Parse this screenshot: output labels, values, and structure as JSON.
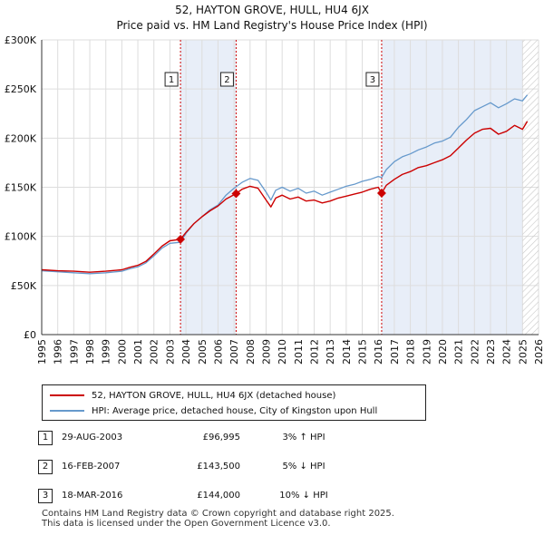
{
  "title_line1": "52, HAYTON GROVE, HULL, HU4 6JX",
  "title_line2": "Price paid vs. HM Land Registry's House Price Index (HPI)",
  "legend": [
    {
      "label": "52, HAYTON GROVE, HULL, HU4 6JX (detached house)",
      "color": "#cc0000"
    },
    {
      "label": "HPI: Average price, detached house, City of Kingston upon Hull",
      "color": "#6699cc"
    }
  ],
  "sales": [
    {
      "num": "1",
      "date": "29-AUG-2003",
      "price": "£96,995",
      "hpi": "3% ↑ HPI"
    },
    {
      "num": "2",
      "date": "16-FEB-2007",
      "price": "£143,500",
      "hpi": "5% ↓ HPI"
    },
    {
      "num": "3",
      "date": "18-MAR-2016",
      "price": "£144,000",
      "hpi": "10% ↓ HPI"
    }
  ],
  "footer_line1": "Contains HM Land Registry data © Crown copyright and database right 2025.",
  "footer_line2": "This data is licensed under the Open Government Licence v3.0.",
  "colors": {
    "property": "#cc0000",
    "hpi": "#6699cc",
    "shade": "#e8eef8",
    "grid": "#dddddd"
  },
  "chart_data": {
    "type": "line",
    "title": "52, HAYTON GROVE, HULL, HU4 6JX",
    "subtitle": "Price paid vs. HM Land Registry's House Price Index (HPI)",
    "xlabel": "",
    "ylabel": "",
    "xlim": [
      1995,
      2026
    ],
    "ylim": [
      0,
      300000
    ],
    "y_ticks": [
      0,
      50000,
      100000,
      150000,
      200000,
      250000,
      300000
    ],
    "y_tick_labels": [
      "£0",
      "£50K",
      "£100K",
      "£150K",
      "£200K",
      "£250K",
      "£300K"
    ],
    "x_ticks": [
      1995,
      1996,
      1997,
      1998,
      1999,
      2000,
      2001,
      2002,
      2003,
      2004,
      2005,
      2006,
      2007,
      2008,
      2009,
      2010,
      2011,
      2012,
      2013,
      2014,
      2015,
      2016,
      2017,
      2018,
      2019,
      2020,
      2021,
      2022,
      2023,
      2024,
      2025,
      2026
    ],
    "x_tick_labels": [
      "1995",
      "1996",
      "1997",
      "1998",
      "1999",
      "2000",
      "2001",
      "2002",
      "2003",
      "2004",
      "2005",
      "2006",
      "2007",
      "2008",
      "2009",
      "2010",
      "2011",
      "2012",
      "2013",
      "2014",
      "2015",
      "2016",
      "2017",
      "2018",
      "2019",
      "2020",
      "2021",
      "2022",
      "2023",
      "2024",
      "2025",
      "2026"
    ],
    "grid": true,
    "legend_position": "below",
    "series": [
      {
        "name": "HPI: Average price, detached house, City of Kingston upon Hull",
        "color": "#6699cc",
        "x": [
          1995.0,
          1996.0,
          1997.0,
          1998.0,
          1999.0,
          2000.0,
          2000.5,
          2001.0,
          2001.5,
          2002.0,
          2002.5,
          2003.0,
          2003.66,
          2004.0,
          2004.5,
          2005.0,
          2005.5,
          2006.0,
          2006.5,
          2007.0,
          2007.5,
          2008.0,
          2008.5,
          2009.0,
          2009.3,
          2009.6,
          2010.0,
          2010.5,
          2011.0,
          2011.5,
          2012.0,
          2012.5,
          2013.0,
          2013.5,
          2014.0,
          2014.5,
          2015.0,
          2015.5,
          2016.0,
          2016.21,
          2016.5,
          2017.0,
          2017.5,
          2018.0,
          2018.5,
          2019.0,
          2019.5,
          2020.0,
          2020.5,
          2021.0,
          2021.5,
          2022.0,
          2022.5,
          2023.0,
          2023.5,
          2024.0,
          2024.5,
          2025.0,
          2025.3
        ],
        "y": [
          65000,
          64000,
          63000,
          62000,
          63000,
          64500,
          67000,
          69000,
          73000,
          80000,
          88000,
          93000,
          94000,
          103000,
          113000,
          120000,
          127000,
          132000,
          142000,
          149000,
          155000,
          159000,
          157000,
          145000,
          137000,
          147000,
          150000,
          146000,
          149000,
          144000,
          146000,
          142000,
          145000,
          148000,
          151000,
          153000,
          156000,
          158000,
          161000,
          160000,
          168000,
          176000,
          181000,
          184000,
          188000,
          191000,
          195000,
          197000,
          201000,
          211000,
          219000,
          228000,
          232000,
          236000,
          231000,
          235000,
          240000,
          238000,
          244000
        ]
      },
      {
        "name": "52, HAYTON GROVE, HULL, HU4 6JX (detached house)",
        "color": "#cc0000",
        "x": [
          1995.0,
          1996.0,
          1997.0,
          1998.0,
          1999.0,
          2000.0,
          2000.5,
          2001.0,
          2001.5,
          2002.0,
          2002.5,
          2003.0,
          2003.66,
          2004.0,
          2004.5,
          2005.0,
          2005.5,
          2006.0,
          2006.5,
          2007.13,
          2007.5,
          2008.0,
          2008.5,
          2009.0,
          2009.3,
          2009.6,
          2010.0,
          2010.5,
          2011.0,
          2011.5,
          2012.0,
          2012.5,
          2013.0,
          2013.5,
          2014.0,
          2014.5,
          2015.0,
          2015.5,
          2016.0,
          2016.21,
          2016.5,
          2017.0,
          2017.5,
          2018.0,
          2018.5,
          2019.0,
          2019.5,
          2020.0,
          2020.5,
          2021.0,
          2021.5,
          2022.0,
          2022.5,
          2023.0,
          2023.5,
          2024.0,
          2024.5,
          2025.0,
          2025.3
        ],
        "y": [
          66000,
          65000,
          64500,
          63500,
          64500,
          66000,
          68500,
          70500,
          74500,
          82000,
          90000,
          95500,
          96995,
          104000,
          113000,
          120000,
          126000,
          131000,
          138000,
          143500,
          148000,
          151000,
          149000,
          137000,
          130000,
          139000,
          142000,
          138000,
          140000,
          136000,
          137000,
          134000,
          136000,
          139000,
          141000,
          143000,
          145000,
          148000,
          150000,
          144000,
          152000,
          158000,
          163000,
          166000,
          170000,
          172000,
          175000,
          178000,
          182000,
          190000,
          198000,
          205000,
          209000,
          210000,
          204000,
          207000,
          213000,
          209000,
          217000
        ]
      }
    ],
    "sale_markers": [
      {
        "label": "1",
        "x": 2003.66,
        "y": 96995
      },
      {
        "label": "2",
        "x": 2007.13,
        "y": 143500
      },
      {
        "label": "3",
        "x": 2016.21,
        "y": 144000
      }
    ],
    "shaded_periods": [
      [
        2003.66,
        2007.13
      ],
      [
        2016.21,
        2025.0
      ]
    ],
    "hatched_after": 2025.0
  }
}
